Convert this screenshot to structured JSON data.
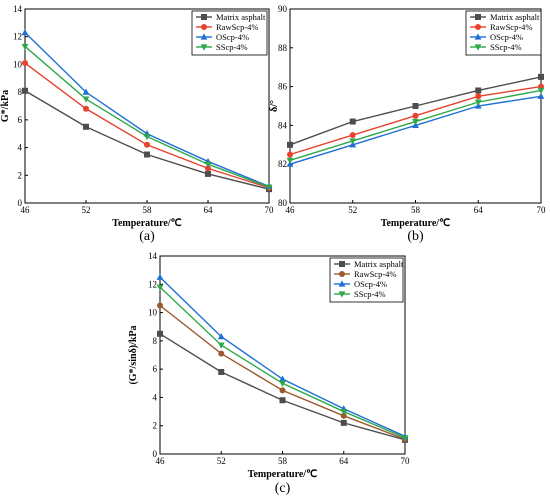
{
  "chart_data": [
    {
      "id": "a",
      "type": "line",
      "panel_label": "(a)",
      "x": [
        46,
        52,
        58,
        64,
        70
      ],
      "xlabel": "Temperature/℃",
      "ylabel": "G*/kPa",
      "xlim": [
        46,
        70
      ],
      "ylim": [
        0,
        14
      ],
      "x_ticks": [
        "46",
        "52",
        "58",
        "64",
        "70"
      ],
      "y_ticks": [
        "0",
        "2",
        "4",
        "6",
        "8",
        "10",
        "12",
        "14"
      ],
      "grid": false,
      "legend_position": "top-right",
      "series": [
        {
          "name": "Matrix asphalt",
          "color": "#4d4d4d",
          "marker": "square",
          "values": [
            8.1,
            5.5,
            3.5,
            2.1,
            1.0
          ]
        },
        {
          "name": "RawScp-4%",
          "color": "#e8412d",
          "marker": "circle",
          "values": [
            10.1,
            6.8,
            4.2,
            2.5,
            1.1
          ]
        },
        {
          "name": "OScp-4%",
          "color": "#1f6fd6",
          "marker": "triangle-up",
          "values": [
            12.3,
            8.0,
            5.0,
            3.0,
            1.2
          ]
        },
        {
          "name": "SScp-4%",
          "color": "#2fa84a",
          "marker": "triangle-down",
          "values": [
            11.3,
            7.5,
            4.8,
            2.8,
            1.15
          ]
        }
      ]
    },
    {
      "id": "b",
      "type": "line",
      "panel_label": "(b)",
      "x": [
        46,
        52,
        58,
        64,
        70
      ],
      "xlabel": "Temperature/℃",
      "ylabel": "δ/°",
      "xlim": [
        46,
        70
      ],
      "ylim": [
        80,
        90
      ],
      "x_ticks": [
        "46",
        "52",
        "58",
        "64",
        "70"
      ],
      "y_ticks": [
        "80",
        "82",
        "84",
        "86",
        "88",
        "90"
      ],
      "grid": false,
      "legend_position": "top-right",
      "series": [
        {
          "name": "Matrix asphalt",
          "color": "#4d4d4d",
          "marker": "square",
          "values": [
            83.0,
            84.2,
            85.0,
            85.8,
            86.5
          ]
        },
        {
          "name": "RawScp-4%",
          "color": "#e8412d",
          "marker": "circle",
          "values": [
            82.5,
            83.5,
            84.5,
            85.5,
            86.0
          ]
        },
        {
          "name": "OScp-4%",
          "color": "#1f6fd6",
          "marker": "triangle-up",
          "values": [
            82.0,
            83.0,
            84.0,
            85.0,
            85.5
          ]
        },
        {
          "name": "SScp-4%",
          "color": "#2fa84a",
          "marker": "triangle-down",
          "values": [
            82.2,
            83.2,
            84.2,
            85.2,
            85.8
          ]
        }
      ]
    },
    {
      "id": "c",
      "type": "line",
      "panel_label": "(c)",
      "x": [
        46,
        52,
        58,
        64,
        70
      ],
      "xlabel": "Temperature/℃",
      "ylabel": "(G*/sinδ)/kPa",
      "xlim": [
        46,
        70
      ],
      "ylim": [
        0,
        14
      ],
      "x_ticks": [
        "46",
        "52",
        "58",
        "64",
        "70"
      ],
      "y_ticks": [
        "0",
        "2",
        "4",
        "6",
        "8",
        "10",
        "12",
        "14"
      ],
      "grid": false,
      "legend_position": "top-right",
      "series": [
        {
          "name": "Matrix asphalt",
          "color": "#4d4d4d",
          "marker": "square",
          "values": [
            8.5,
            5.8,
            3.8,
            2.2,
            1.0
          ]
        },
        {
          "name": "RawScp-4%",
          "color": "#9a5a2e",
          "marker": "circle",
          "values": [
            10.5,
            7.1,
            4.5,
            2.7,
            1.05
          ]
        },
        {
          "name": "OScp-4%",
          "color": "#1f6fd6",
          "marker": "triangle-up",
          "values": [
            12.5,
            8.3,
            5.3,
            3.2,
            1.25
          ]
        },
        {
          "name": "SScp-4%",
          "color": "#2fa84a",
          "marker": "triangle-down",
          "values": [
            11.8,
            7.7,
            5.0,
            3.0,
            1.15
          ]
        }
      ]
    }
  ]
}
